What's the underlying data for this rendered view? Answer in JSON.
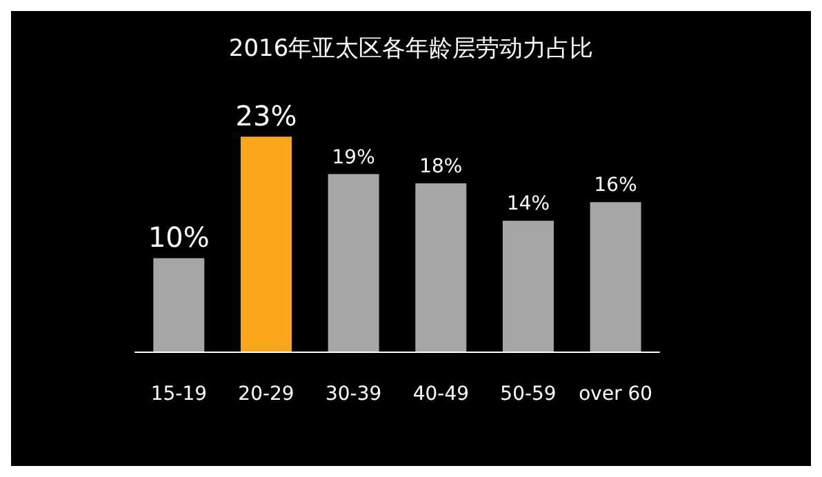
{
  "chart_data": {
    "type": "bar",
    "title": "2016年亚太区各年龄层劳动力占比",
    "categories": [
      "15-19",
      "20-29",
      "30-39",
      "40-49",
      "50-59",
      "over 60"
    ],
    "values": [
      10,
      23,
      19,
      18,
      14,
      16
    ],
    "colors": [
      "#a6a6a6",
      "#f9a61a",
      "#a6a6a6",
      "#a6a6a6",
      "#a6a6a6",
      "#a6a6a6"
    ],
    "value_labels": [
      "10%",
      "23%",
      "19%",
      "18%",
      "14%",
      "16%"
    ]
  }
}
